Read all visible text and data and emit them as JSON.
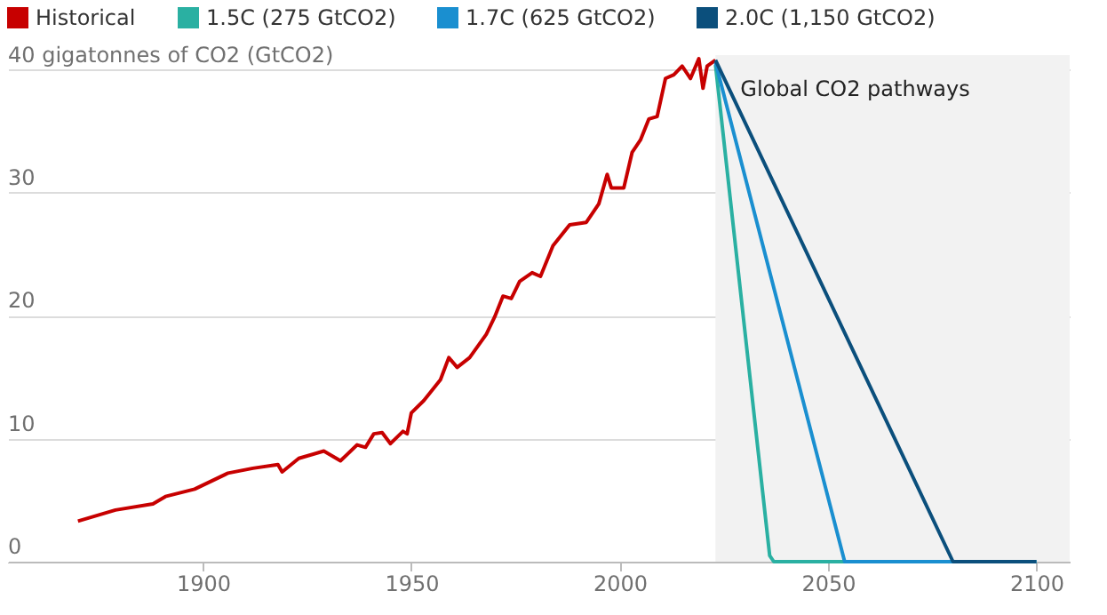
{
  "chart_data": {
    "type": "line",
    "xlim": [
      1853,
      2108
    ],
    "xticks": [
      1900,
      1950,
      2000,
      2050,
      2100
    ],
    "ylim": [
      0,
      41.2
    ],
    "yticks": [
      0,
      10,
      20,
      30,
      {
        "value": 40,
        "label": "40 gigatonnes of CO2 (GtCO2)"
      }
    ],
    "grid": "y",
    "legend": "top left",
    "marker": "none",
    "line_style": "solid",
    "bands": [
      {
        "axis": "x",
        "from": 2023,
        "to": 2108,
        "label": "Global CO2 pathways",
        "color": "#f2f2f2"
      }
    ],
    "series": [
      {
        "name": "Historical",
        "color": "#c70000",
        "x": [
          1870,
          1879,
          1888,
          1891,
          1898,
          1906,
          1912,
          1918,
          1919,
          1923,
          1929,
          1933,
          1937,
          1939,
          1941,
          1943,
          1945,
          1948,
          1949,
          1950,
          1953,
          1957,
          1959,
          1961,
          1964,
          1968,
          1970,
          1972,
          1974,
          1976,
          1979,
          1981,
          1984,
          1988,
          1992,
          1995,
          1997,
          1998,
          2001,
          2003,
          2005,
          2007,
          2009,
          2011,
          2013,
          2015,
          2017,
          2019,
          2020,
          2021,
          2023
        ],
        "values": [
          3.3,
          4.2,
          4.7,
          5.3,
          5.9,
          7.2,
          7.6,
          7.9,
          7.3,
          8.4,
          9.0,
          8.2,
          9.5,
          9.3,
          10.4,
          10.5,
          9.6,
          10.6,
          10.4,
          12.1,
          13.1,
          14.8,
          16.6,
          15.8,
          16.6,
          18.5,
          19.9,
          21.6,
          21.4,
          22.8,
          23.5,
          23.2,
          25.7,
          27.4,
          27.6,
          29.1,
          31.5,
          30.4,
          30.4,
          33.3,
          34.3,
          36.0,
          36.2,
          39.3,
          39.6,
          40.3,
          39.3,
          40.9,
          38.5,
          40.3,
          40.8
        ]
      },
      {
        "name": "1.5C (275 GtCO2)",
        "color": "#2ab0a2",
        "x": [
          2023,
          2036,
          2037,
          2100
        ],
        "values": [
          40.4,
          0.5,
          0,
          0
        ]
      },
      {
        "name": "1.7C (625 GtCO2)",
        "color": "#1a8fd0",
        "x": [
          2023,
          2054,
          2100
        ],
        "values": [
          40.6,
          0,
          0
        ]
      },
      {
        "name": "2.0C (1,150 GtCO2)",
        "color": "#0b4f7c",
        "x": [
          2023,
          2080,
          2100
        ],
        "values": [
          40.8,
          0,
          0
        ]
      }
    ]
  }
}
